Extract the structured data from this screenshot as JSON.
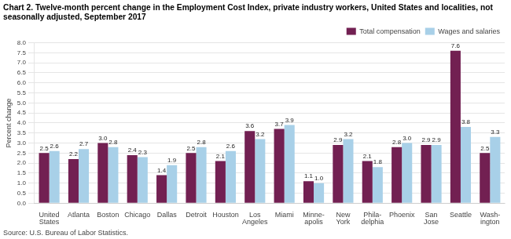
{
  "chart_data": {
    "type": "bar",
    "title": "Chart 2. Twelve-month percent change in the Employment Cost Index, private industry workers, United States and localities, not\nseasonally adjusted, September 2017",
    "ylabel": "Percent change",
    "source": "Source: U.S. Bureau of Labor Statistics.",
    "categories": [
      "United\nStates",
      "Atlanta",
      "Boston",
      "Chicago",
      "Dallas",
      "Detroit",
      "Houston",
      "Los\nAngeles",
      "Miami",
      "Minne-\napolis",
      "New\nYork",
      "Phila-\ndelphia",
      "Phoenix",
      "San\nJose",
      "Seattle",
      "Wash-\nington"
    ],
    "series": [
      {
        "name": "Total compensation",
        "color": "#722052",
        "values": [
          2.5,
          2.2,
          3.0,
          2.4,
          1.4,
          2.5,
          2.1,
          3.6,
          3.7,
          1.1,
          2.9,
          2.1,
          2.8,
          2.9,
          7.6,
          2.5
        ],
        "value_labels": [
          "2.5",
          "2.2",
          "3.0",
          "2.4",
          "1.4",
          "2.5",
          "2.1",
          "3.6",
          "3.7",
          "1.1",
          "2.9",
          "2.1",
          "2.8",
          "2.9",
          "7.6",
          "2.5"
        ]
      },
      {
        "name": "Wages and salaries",
        "color": "#a8d0e8",
        "values": [
          2.6,
          2.7,
          2.8,
          2.3,
          1.9,
          2.8,
          2.6,
          3.2,
          3.9,
          1.0,
          3.2,
          1.8,
          3.0,
          2.9,
          3.8,
          3.3
        ],
        "value_labels": [
          "2.6",
          "2.7",
          "2.8",
          "2.3",
          "1.9",
          "2.8",
          "2.6",
          "3.2",
          "3.9",
          "1.0",
          "3.2",
          "1.8",
          "3.0",
          "2.9",
          "3.8",
          "3.3"
        ]
      }
    ],
    "ylim": [
      0,
      8
    ],
    "yticks": [
      {
        "value": 0,
        "label": "0.0"
      },
      0.5,
      {
        "value": 1,
        "label": "1.0"
      },
      1.5,
      {
        "value": 2,
        "label": "2.0"
      },
      2.5,
      {
        "value": 3,
        "label": "3.0"
      },
      3.5,
      {
        "value": 4,
        "label": "4.0"
      },
      4.5,
      {
        "value": 5,
        "label": "5.0"
      },
      5.5,
      {
        "value": 6,
        "label": "6.0"
      },
      6.5,
      {
        "value": 7,
        "label": "7.0"
      },
      7.5,
      {
        "value": 8,
        "label": "8.0"
      }
    ],
    "grid": true,
    "legend": "upper right",
    "data_labels": true
  }
}
